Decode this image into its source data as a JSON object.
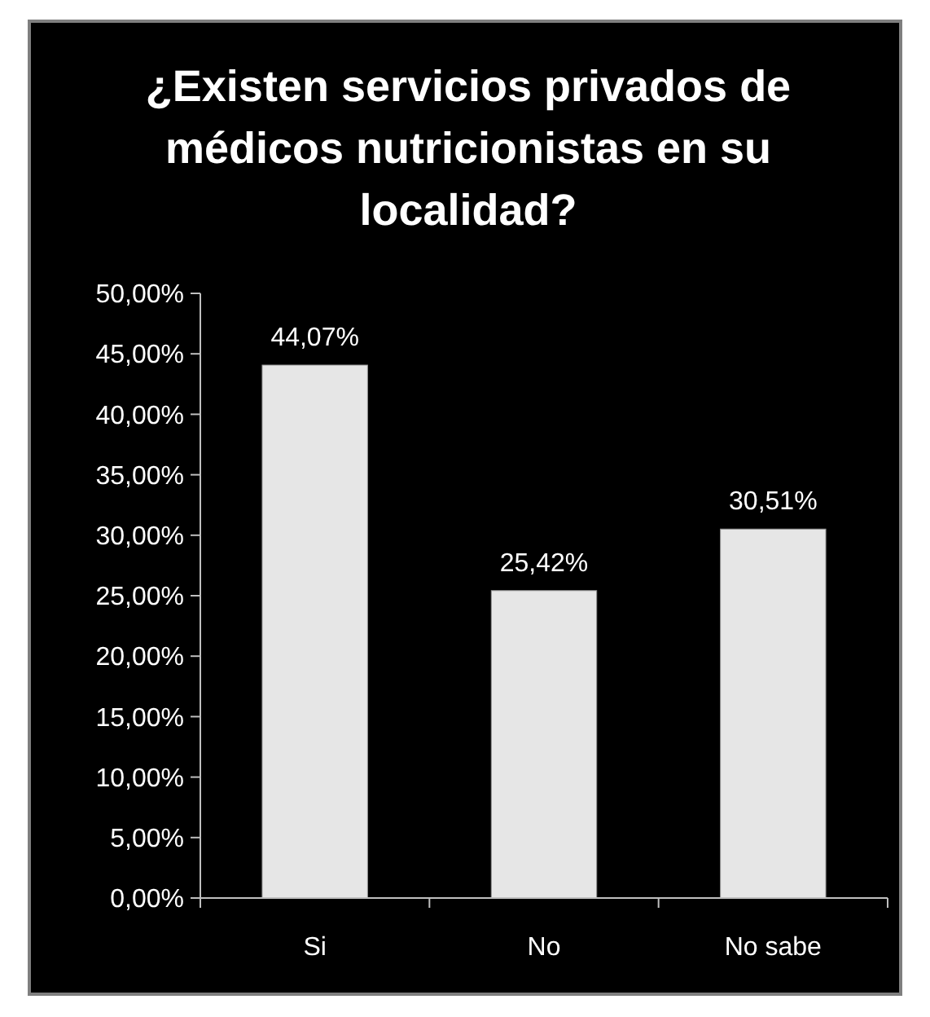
{
  "chart_data": {
    "type": "bar",
    "title": "¿Existen servicios privados de médicos nutricionistas en su localidad?",
    "categories": [
      "Si",
      "No",
      "No sabe"
    ],
    "values": [
      44.07,
      25.42,
      30.51
    ],
    "value_labels": [
      "44,07%",
      "25,42%",
      "30,51%"
    ],
    "color": "#e6e6e6",
    "ylim": [
      0,
      50
    ],
    "yticks": [
      {
        "value": 0,
        "label": "0,00%"
      },
      {
        "value": 5,
        "label": "5,00%"
      },
      {
        "value": 10,
        "label": "10,00%"
      },
      {
        "value": 15,
        "label": "15,00%"
      },
      {
        "value": 20,
        "label": "20,00%"
      },
      {
        "value": 25,
        "label": "25,00%"
      },
      {
        "value": 30,
        "label": "30,00%"
      },
      {
        "value": 35,
        "label": "35,00%"
      },
      {
        "value": 40,
        "label": "40,00%"
      },
      {
        "value": 45,
        "label": "45,00%"
      },
      {
        "value": 50,
        "label": "50,00%"
      }
    ],
    "grid": false
  }
}
